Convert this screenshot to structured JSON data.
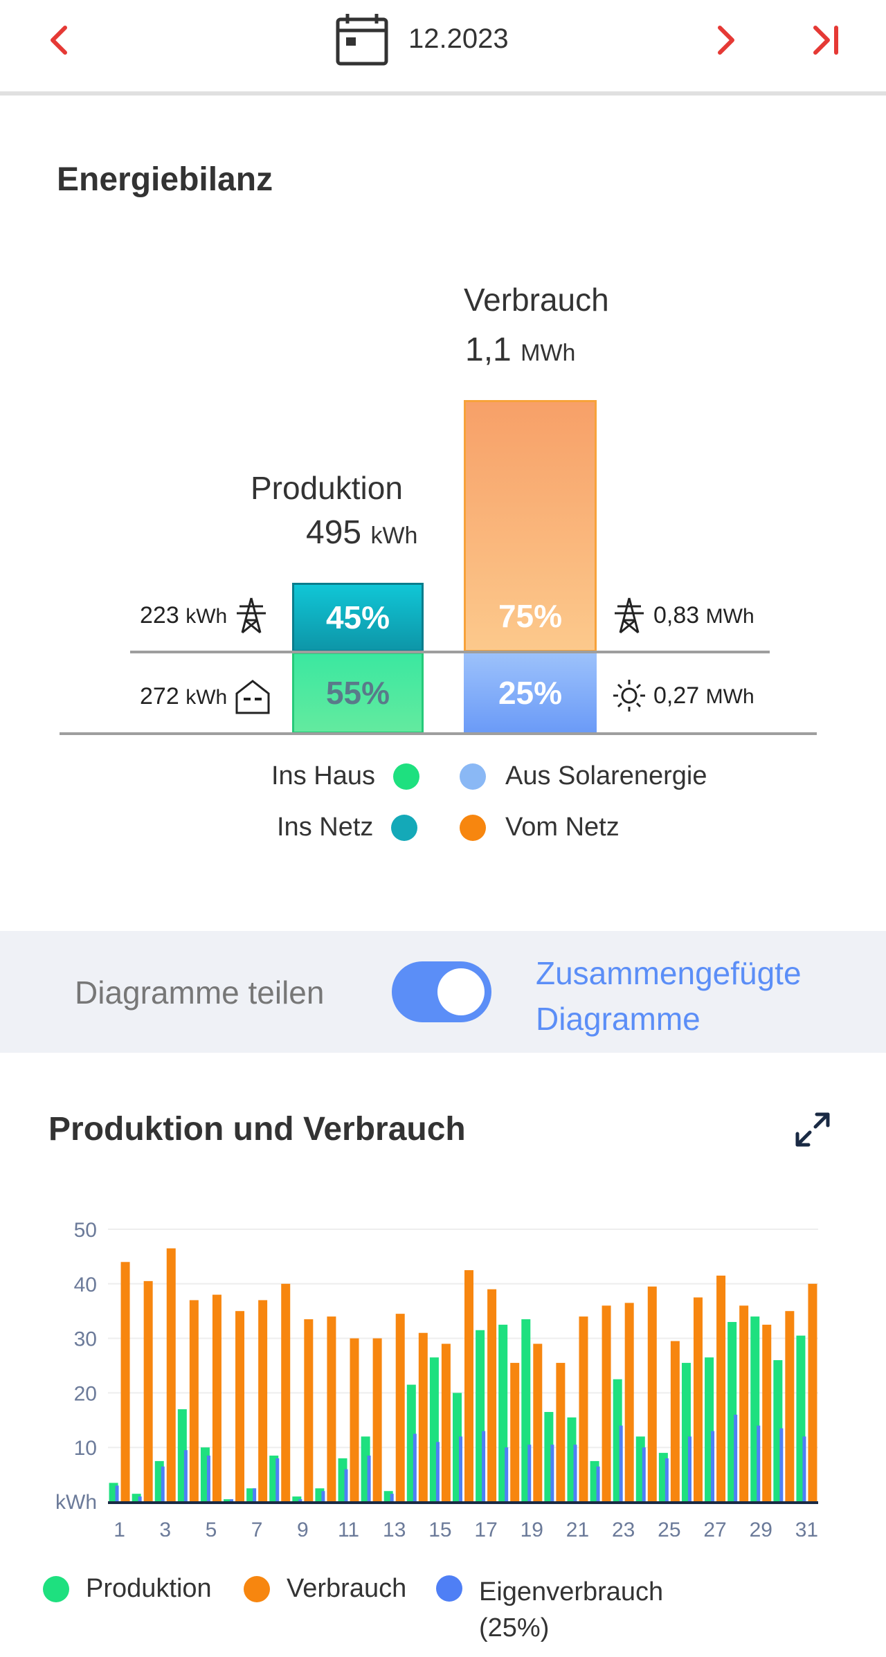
{
  "header": {
    "period": "12.2023",
    "prev_icon": "chevron-left-icon",
    "next_icon": "chevron-right-icon",
    "last_icon": "skip-to-end-icon",
    "calendar_icon": "calendar-icon"
  },
  "energy_balance": {
    "title": "Energiebilanz",
    "consumption": {
      "label": "Verbrauch",
      "value": "1,1",
      "unit": "MWh",
      "grid_pct": "75%",
      "solar_pct": "25%"
    },
    "production": {
      "label": "Produktion",
      "value": "495",
      "unit": "kWh",
      "grid_pct": "45%",
      "house_pct": "55%"
    },
    "left_top": {
      "value": "223",
      "unit": "kWh",
      "icon": "power-tower-icon"
    },
    "left_bottom": {
      "value": "272",
      "unit": "kWh",
      "icon": "house-icon"
    },
    "right_top": {
      "value": "0,83",
      "unit": "MWh",
      "icon": "power-tower-icon"
    },
    "right_bottom": {
      "value": "0,27",
      "unit": "MWh",
      "icon": "sun-icon"
    },
    "legend": {
      "ins_haus": "Ins Haus",
      "ins_netz": "Ins Netz",
      "aus_solar": "Aus Solarenergie",
      "vom_netz": "Vom Netz"
    },
    "colors": {
      "ins_haus": "#1ee07f",
      "ins_netz": "#14a9b8",
      "aus_solar": "#8ab8f5",
      "vom_netz": "#f7860f"
    }
  },
  "toggle": {
    "left_label": "Diagramme teilen",
    "right_label_1": "Zusammengefügte",
    "right_label_2": "Diagramme",
    "state": "on"
  },
  "chart_section": {
    "title": "Produktion und Verbrauch",
    "expand_icon": "expand-icon"
  },
  "chart_data": {
    "type": "bar",
    "ylabel": "kWh",
    "ylim": [
      0,
      50
    ],
    "yticks": [
      10,
      20,
      30,
      40,
      50
    ],
    "x": [
      1,
      2,
      3,
      4,
      5,
      6,
      7,
      8,
      9,
      10,
      11,
      12,
      13,
      14,
      15,
      16,
      17,
      18,
      19,
      20,
      21,
      22,
      23,
      24,
      25,
      26,
      27,
      28,
      29,
      30,
      31
    ],
    "xtick_labels": [
      "1",
      "3",
      "5",
      "7",
      "9",
      "11",
      "13",
      "15",
      "17",
      "19",
      "21",
      "23",
      "25",
      "27",
      "29",
      "31"
    ],
    "series": [
      {
        "name": "Produktion",
        "color": "#1ee07f",
        "values": [
          3.5,
          1.5,
          7.5,
          17,
          10,
          0.5,
          2.5,
          8.5,
          1,
          2.5,
          8,
          12,
          2,
          21.5,
          26.5,
          20,
          31.5,
          32.5,
          33.5,
          16.5,
          15.5,
          7.5,
          22.5,
          12,
          9,
          25.5,
          26.5,
          33,
          34,
          26,
          30.5
        ]
      },
      {
        "name": "Verbrauch",
        "color": "#f7860f",
        "values": [
          44,
          40.5,
          46.5,
          37,
          38,
          35,
          37,
          40,
          33.5,
          34,
          30,
          30,
          34.5,
          31,
          29,
          42.5,
          39,
          25.5,
          29,
          25.5,
          34,
          36,
          36.5,
          39.5,
          29.5,
          37.5,
          41.5,
          36,
          32.5,
          35,
          40
        ]
      },
      {
        "name": "Eigenverbrauch",
        "color": "#4f7ff5",
        "values": [
          3,
          1,
          6.5,
          9.5,
          8.5,
          0.5,
          2.5,
          8,
          0.5,
          2,
          6,
          8.5,
          1.5,
          12.5,
          11,
          12,
          13,
          10,
          10.5,
          10.5,
          10.5,
          6.5,
          14,
          10,
          8,
          12,
          13,
          16,
          14,
          13.5,
          12
        ]
      }
    ],
    "legend": {
      "produktion": "Produktion",
      "verbrauch": "Verbrauch",
      "eigenverbrauch_1": "Eigenverbrauch",
      "eigenverbrauch_2": "(25%)"
    }
  }
}
